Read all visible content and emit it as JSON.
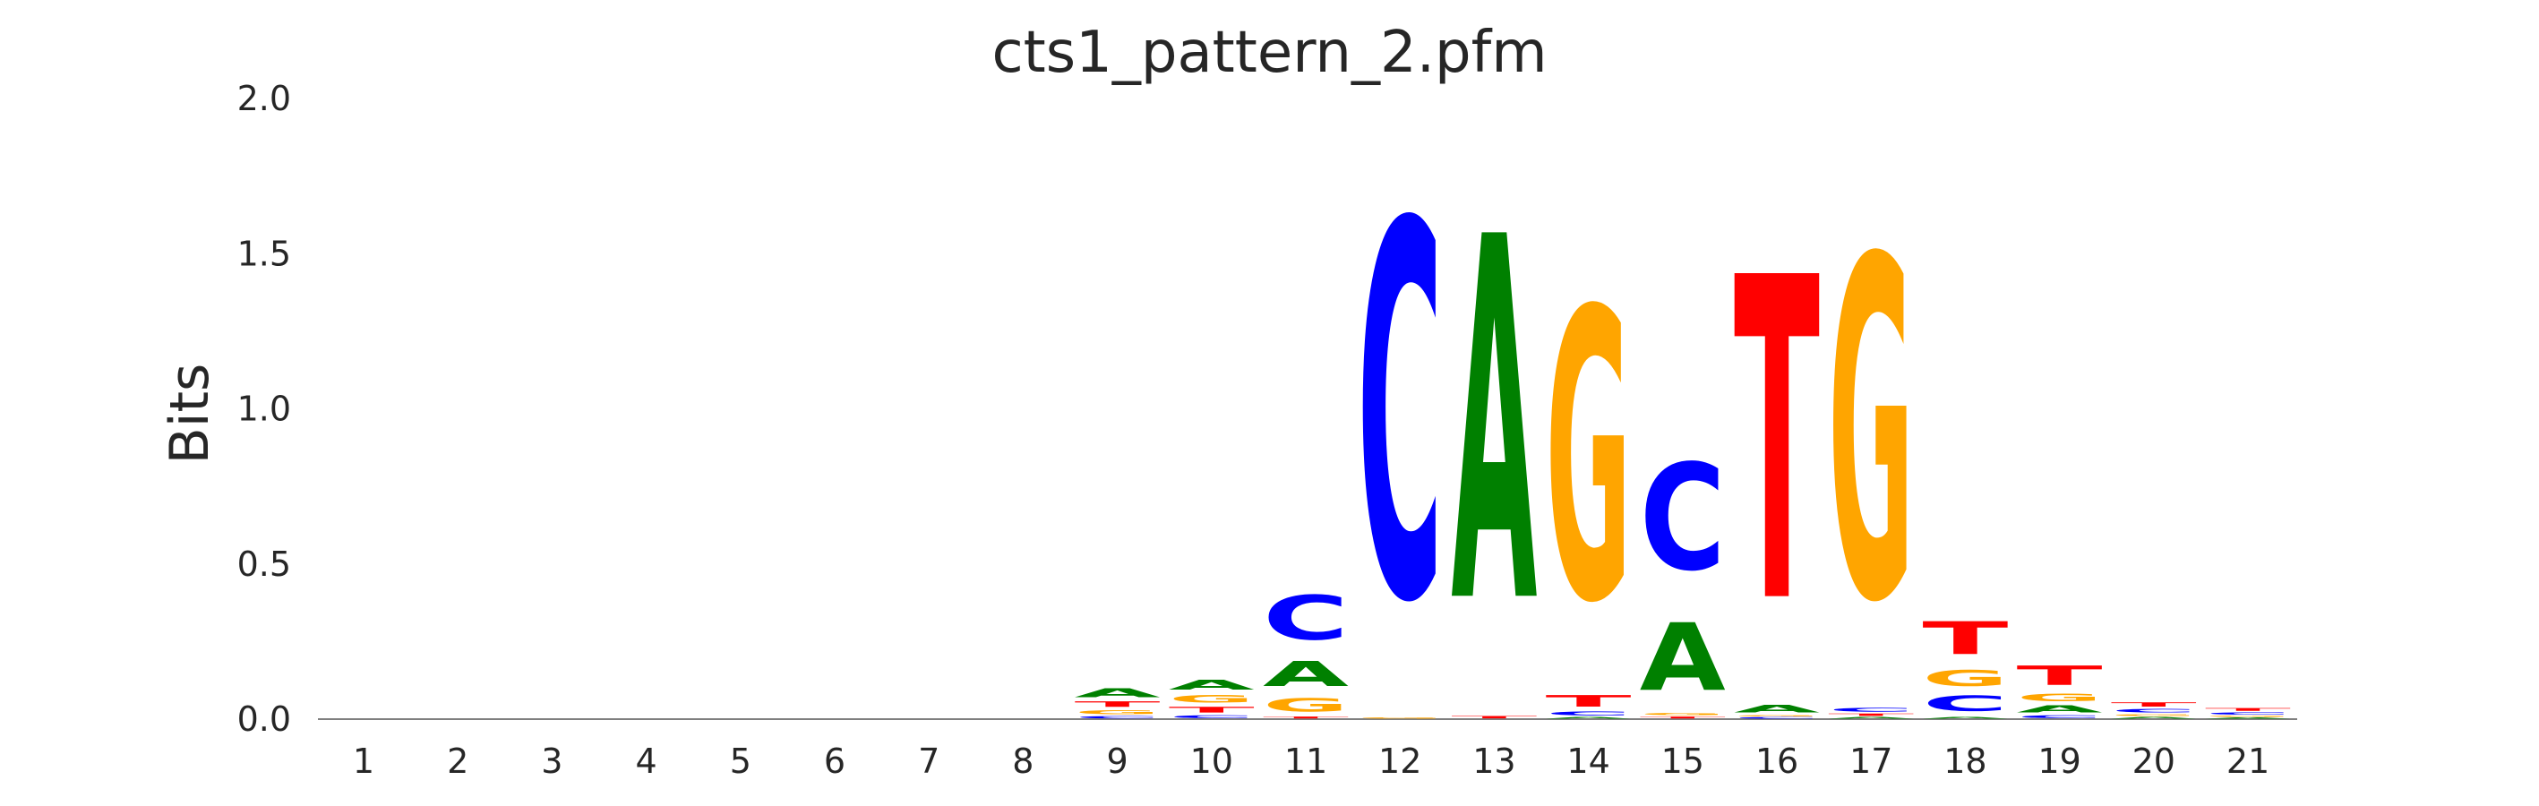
{
  "chart_data": {
    "type": "sequence-logo",
    "title": "cts1_pattern_2.pfm",
    "ylabel": "Bits",
    "xlabel": "",
    "ylim": [
      0,
      2.0
    ],
    "yticks": [
      "0.0",
      "0.5",
      "1.0",
      "1.5",
      "2.0"
    ],
    "positions": [
      "1",
      "2",
      "3",
      "4",
      "5",
      "6",
      "7",
      "8",
      "9",
      "10",
      "11",
      "12",
      "13",
      "14",
      "15",
      "16",
      "17",
      "18",
      "19",
      "20",
      "21"
    ],
    "colors": {
      "A": "#008000",
      "C": "#0000ff",
      "G": "#ffa500",
      "T": "#ff0000"
    },
    "columns": [
      {
        "position": "1",
        "letters": []
      },
      {
        "position": "2",
        "letters": []
      },
      {
        "position": "3",
        "letters": []
      },
      {
        "position": "4",
        "letters": []
      },
      {
        "position": "5",
        "letters": []
      },
      {
        "position": "6",
        "letters": []
      },
      {
        "position": "7",
        "letters": []
      },
      {
        "position": "8",
        "letters": []
      },
      {
        "position": "9",
        "letters": [
          {
            "base": "C",
            "bits": 0.012
          },
          {
            "base": "G",
            "bits": 0.022
          },
          {
            "base": "T",
            "bits": 0.028
          },
          {
            "base": "A",
            "bits": 0.045
          }
        ]
      },
      {
        "position": "10",
        "letters": [
          {
            "base": "C",
            "bits": 0.015
          },
          {
            "base": "T",
            "bits": 0.03
          },
          {
            "base": "G",
            "bits": 0.04
          },
          {
            "base": "A",
            "bits": 0.05
          }
        ]
      },
      {
        "position": "11",
        "letters": [
          {
            "base": "T",
            "bits": 0.01
          },
          {
            "base": "G",
            "bits": 0.07
          },
          {
            "base": "A",
            "bits": 0.13
          },
          {
            "base": "C",
            "bits": 0.23
          }
        ]
      },
      {
        "position": "12",
        "letters": [
          {
            "base": "G",
            "bits": 0.005
          },
          {
            "base": "C",
            "bits": 1.94
          }
        ]
      },
      {
        "position": "13",
        "letters": [
          {
            "base": "T",
            "bits": 0.012
          },
          {
            "base": "A",
            "bits": 1.88
          }
        ]
      },
      {
        "position": "14",
        "letters": [
          {
            "base": "A",
            "bits": 0.008
          },
          {
            "base": "C",
            "bits": 0.02
          },
          {
            "base": "T",
            "bits": 0.06
          },
          {
            "base": "G",
            "bits": 1.5
          }
        ]
      },
      {
        "position": "15",
        "letters": [
          {
            "base": "T",
            "bits": 0.01
          },
          {
            "base": "G",
            "bits": 0.012
          },
          {
            "base": "A",
            "bits": 0.35
          },
          {
            "base": "C",
            "bits": 0.55
          }
        ]
      },
      {
        "position": "16",
        "letters": [
          {
            "base": "C",
            "bits": 0.008
          },
          {
            "base": "G",
            "bits": 0.006
          },
          {
            "base": "A",
            "bits": 0.04
          },
          {
            "base": "T",
            "bits": 1.67
          }
        ]
      },
      {
        "position": "17",
        "letters": [
          {
            "base": "A",
            "bits": 0.008
          },
          {
            "base": "T",
            "bits": 0.012
          },
          {
            "base": "C",
            "bits": 0.02
          },
          {
            "base": "G",
            "bits": 1.76
          }
        ]
      },
      {
        "position": "18",
        "letters": [
          {
            "base": "A",
            "bits": 0.01
          },
          {
            "base": "C",
            "bits": 0.08
          },
          {
            "base": "G",
            "bits": 0.085
          },
          {
            "base": "T",
            "bits": 0.17
          }
        ]
      },
      {
        "position": "19",
        "letters": [
          {
            "base": "C",
            "bits": 0.015
          },
          {
            "base": "A",
            "bits": 0.035
          },
          {
            "base": "G",
            "bits": 0.04
          },
          {
            "base": "T",
            "bits": 0.1
          }
        ]
      },
      {
        "position": "20",
        "letters": [
          {
            "base": "A",
            "bits": 0.008
          },
          {
            "base": "G",
            "bits": 0.01
          },
          {
            "base": "C",
            "bits": 0.018
          },
          {
            "base": "T",
            "bits": 0.022
          }
        ]
      },
      {
        "position": "21",
        "letters": [
          {
            "base": "A",
            "bits": 0.006
          },
          {
            "base": "G",
            "bits": 0.006
          },
          {
            "base": "C",
            "bits": 0.012
          },
          {
            "base": "T",
            "bits": 0.014
          }
        ]
      }
    ]
  }
}
